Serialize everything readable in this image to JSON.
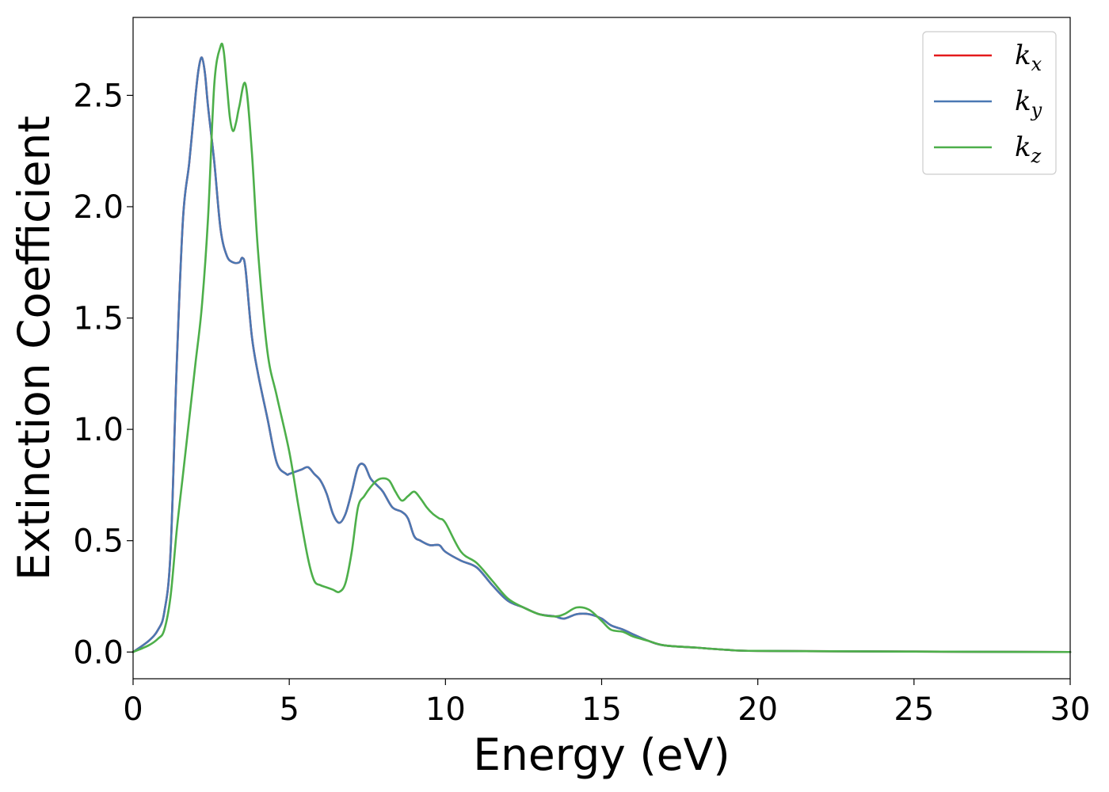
{
  "chart_data": {
    "type": "line",
    "title": "",
    "xlabel": "Energy (eV)",
    "ylabel": "Extinction Coefficient",
    "xlim": [
      0,
      30
    ],
    "ylim": [
      -0.12,
      2.85
    ],
    "xticks": [
      "0",
      "5",
      "10",
      "15",
      "20",
      "25",
      "30"
    ],
    "xtick_values": [
      0,
      5,
      10,
      15,
      20,
      25,
      30
    ],
    "yticks": [
      "0.0",
      "0.5",
      "1.0",
      "1.5",
      "2.0",
      "2.5"
    ],
    "ytick_values": [
      0,
      0.5,
      1.0,
      1.5,
      2.0,
      2.5
    ],
    "grid": false,
    "legend": {
      "position": "upper-right",
      "entries": [
        {
          "base": "k",
          "sub": "x",
          "color": "#e41a1c"
        },
        {
          "base": "k",
          "sub": "y",
          "color": "#4a78b3"
        },
        {
          "base": "k",
          "sub": "z",
          "color": "#4daf4a"
        }
      ]
    },
    "series": [
      {
        "name": "k_x",
        "color": "#e41a1c",
        "x": [
          0,
          0.5,
          0.8,
          1.0,
          1.2,
          1.4,
          1.6,
          1.8,
          2.0,
          2.1,
          2.2,
          2.3,
          2.4,
          2.6,
          2.8,
          3.0,
          3.2,
          3.4,
          3.5,
          3.6,
          3.8,
          4.0,
          4.3,
          4.6,
          4.9,
          5.0,
          5.2,
          5.4,
          5.6,
          5.8,
          6.0,
          6.2,
          6.4,
          6.6,
          6.8,
          7.0,
          7.2,
          7.4,
          7.6,
          7.8,
          8.0,
          8.3,
          8.6,
          8.8,
          9.0,
          9.2,
          9.5,
          9.8,
          10.0,
          10.5,
          11.0,
          11.5,
          12.0,
          12.5,
          13.0,
          13.5,
          13.8,
          14.2,
          14.6,
          15.0,
          15.3,
          15.7,
          16.0,
          16.5,
          17.0,
          18.0,
          19.0,
          20.0,
          25.0,
          30.0
        ],
        "y": [
          0.0,
          0.05,
          0.1,
          0.18,
          0.45,
          1.3,
          1.95,
          2.2,
          2.5,
          2.62,
          2.67,
          2.6,
          2.45,
          2.2,
          1.9,
          1.78,
          1.75,
          1.75,
          1.77,
          1.72,
          1.42,
          1.25,
          1.05,
          0.85,
          0.8,
          0.8,
          0.81,
          0.82,
          0.83,
          0.8,
          0.77,
          0.71,
          0.62,
          0.58,
          0.62,
          0.72,
          0.83,
          0.84,
          0.78,
          0.75,
          0.72,
          0.65,
          0.63,
          0.6,
          0.52,
          0.5,
          0.48,
          0.48,
          0.45,
          0.41,
          0.38,
          0.3,
          0.23,
          0.2,
          0.17,
          0.16,
          0.15,
          0.17,
          0.17,
          0.15,
          0.12,
          0.1,
          0.08,
          0.05,
          0.03,
          0.02,
          0.01,
          0.005,
          0.002,
          0.0
        ]
      },
      {
        "name": "k_y",
        "color": "#4a78b3",
        "x": [
          0,
          0.5,
          0.8,
          1.0,
          1.2,
          1.4,
          1.6,
          1.8,
          2.0,
          2.1,
          2.2,
          2.3,
          2.4,
          2.6,
          2.8,
          3.0,
          3.2,
          3.4,
          3.5,
          3.6,
          3.8,
          4.0,
          4.3,
          4.6,
          4.9,
          5.0,
          5.2,
          5.4,
          5.6,
          5.8,
          6.0,
          6.2,
          6.4,
          6.6,
          6.8,
          7.0,
          7.2,
          7.4,
          7.6,
          7.8,
          8.0,
          8.3,
          8.6,
          8.8,
          9.0,
          9.2,
          9.5,
          9.8,
          10.0,
          10.5,
          11.0,
          11.5,
          12.0,
          12.5,
          13.0,
          13.5,
          13.8,
          14.2,
          14.6,
          15.0,
          15.3,
          15.7,
          16.0,
          16.5,
          17.0,
          18.0,
          19.0,
          20.0,
          25.0,
          30.0
        ],
        "y": [
          0.0,
          0.05,
          0.1,
          0.18,
          0.45,
          1.3,
          1.95,
          2.2,
          2.5,
          2.62,
          2.67,
          2.6,
          2.45,
          2.2,
          1.9,
          1.78,
          1.75,
          1.75,
          1.77,
          1.72,
          1.42,
          1.25,
          1.05,
          0.85,
          0.8,
          0.8,
          0.81,
          0.82,
          0.83,
          0.8,
          0.77,
          0.71,
          0.62,
          0.58,
          0.62,
          0.72,
          0.83,
          0.84,
          0.78,
          0.75,
          0.72,
          0.65,
          0.63,
          0.6,
          0.52,
          0.5,
          0.48,
          0.48,
          0.45,
          0.41,
          0.38,
          0.3,
          0.23,
          0.2,
          0.17,
          0.16,
          0.15,
          0.17,
          0.17,
          0.15,
          0.12,
          0.1,
          0.08,
          0.05,
          0.03,
          0.02,
          0.01,
          0.005,
          0.002,
          0.0
        ]
      },
      {
        "name": "k_z",
        "color": "#4daf4a",
        "x": [
          0,
          0.5,
          0.8,
          1.0,
          1.2,
          1.4,
          1.6,
          1.8,
          2.0,
          2.2,
          2.4,
          2.6,
          2.8,
          2.9,
          3.0,
          3.1,
          3.2,
          3.3,
          3.4,
          3.6,
          3.8,
          4.0,
          4.3,
          4.6,
          5.0,
          5.3,
          5.6,
          5.8,
          6.0,
          6.2,
          6.4,
          6.6,
          6.8,
          7.0,
          7.2,
          7.4,
          7.6,
          7.8,
          8.0,
          8.2,
          8.4,
          8.6,
          8.8,
          9.0,
          9.2,
          9.4,
          9.6,
          9.8,
          10.0,
          10.5,
          11.0,
          11.5,
          12.0,
          12.5,
          13.0,
          13.5,
          13.8,
          14.2,
          14.6,
          15.0,
          15.3,
          15.7,
          16.0,
          16.5,
          17.0,
          18.0,
          19.0,
          20.0,
          25.0,
          30.0
        ],
        "y": [
          0.0,
          0.03,
          0.06,
          0.1,
          0.25,
          0.55,
          0.8,
          1.05,
          1.3,
          1.55,
          1.95,
          2.55,
          2.72,
          2.7,
          2.55,
          2.4,
          2.34,
          2.38,
          2.45,
          2.55,
          2.25,
          1.8,
          1.35,
          1.15,
          0.9,
          0.65,
          0.42,
          0.32,
          0.3,
          0.29,
          0.28,
          0.27,
          0.31,
          0.45,
          0.65,
          0.7,
          0.74,
          0.77,
          0.78,
          0.77,
          0.72,
          0.68,
          0.7,
          0.72,
          0.69,
          0.65,
          0.62,
          0.6,
          0.58,
          0.45,
          0.4,
          0.32,
          0.24,
          0.2,
          0.17,
          0.16,
          0.17,
          0.2,
          0.19,
          0.14,
          0.1,
          0.09,
          0.07,
          0.05,
          0.03,
          0.02,
          0.01,
          0.005,
          0.002,
          0.0
        ]
      }
    ]
  }
}
